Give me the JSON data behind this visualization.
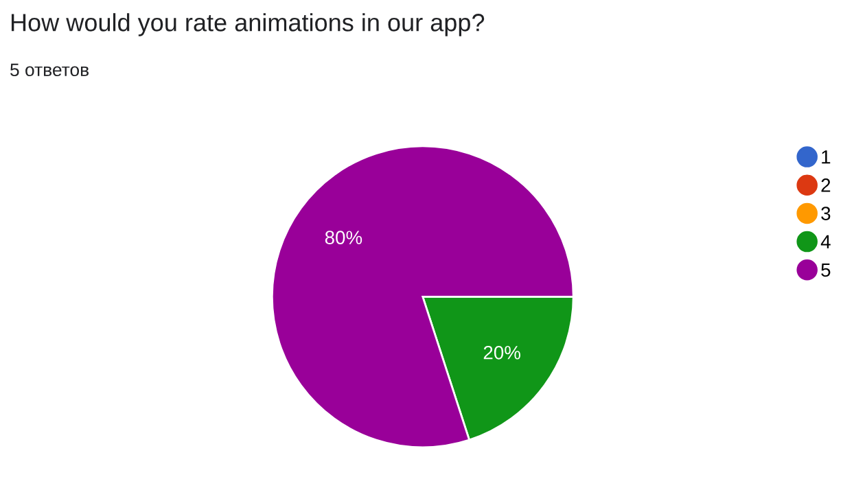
{
  "chart_data": {
    "type": "pie",
    "title": "How would you rate animations in our app?",
    "subtitle": "5 ответов",
    "categories": [
      "1",
      "2",
      "3",
      "4",
      "5"
    ],
    "values": [
      0,
      0,
      0,
      20,
      80
    ],
    "colors": [
      "#3366cc",
      "#dc3912",
      "#ff9900",
      "#109618",
      "#990099"
    ],
    "value_labels": [
      null,
      null,
      null,
      "20%",
      "80%"
    ],
    "legend": "right"
  }
}
